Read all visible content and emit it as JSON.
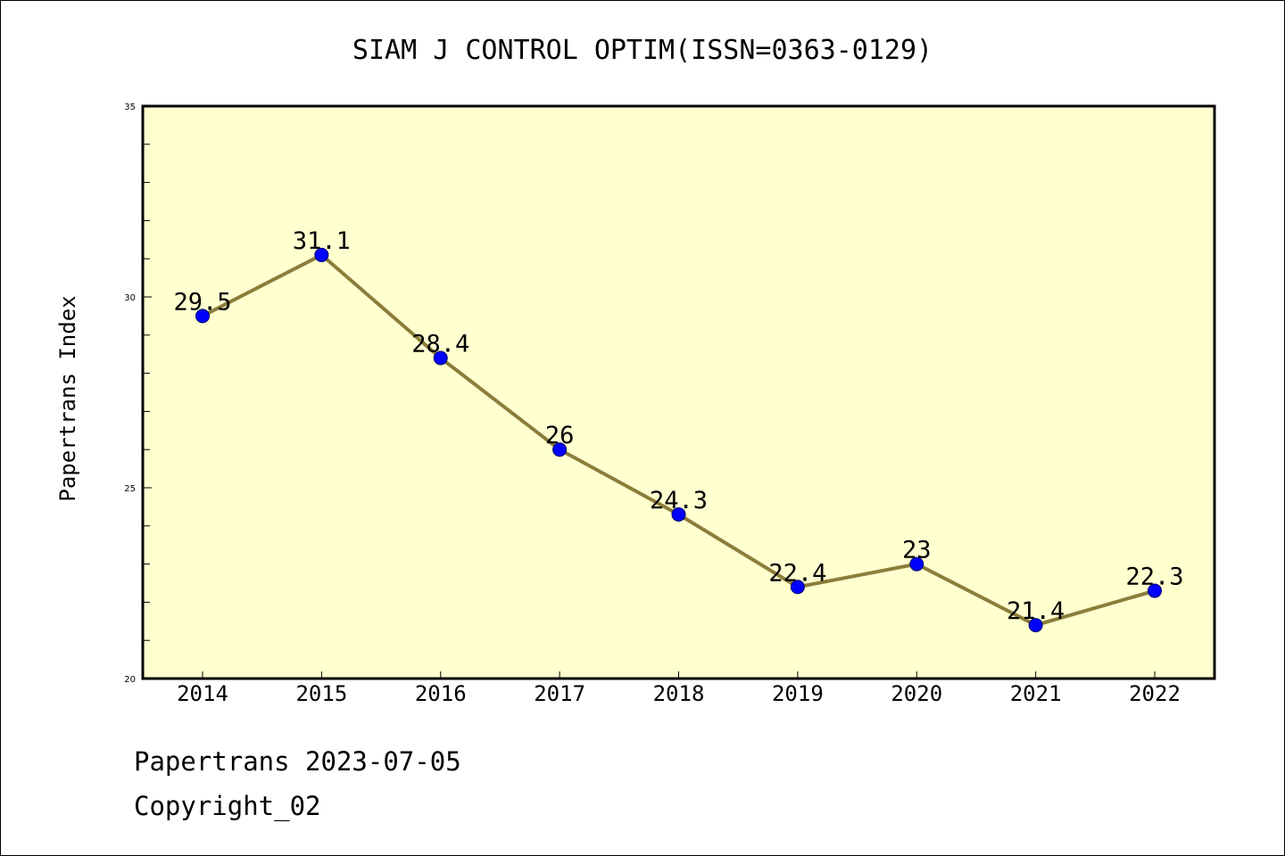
{
  "chart_data": {
    "type": "line",
    "title": "SIAM J CONTROL OPTIM(ISSN=0363-0129)",
    "xlabel": "",
    "ylabel": "Papertrans Index",
    "categories": [
      "2014",
      "2015",
      "2016",
      "2017",
      "2018",
      "2019",
      "2020",
      "2021",
      "2022"
    ],
    "series": [
      {
        "values": [
          29.5,
          31.1,
          28.4,
          26,
          24.3,
          22.4,
          23,
          21.4,
          22.3
        ],
        "labels": [
          "29.5",
          "31.1",
          "28.4",
          "26",
          "24.3",
          "22.4",
          "23",
          "21.4",
          "22.3"
        ]
      }
    ],
    "ylim": [
      20,
      35
    ],
    "yticks": [
      "20",
      "25",
      "30",
      "35"
    ],
    "grid": false,
    "legend": "none",
    "colors": {
      "plot_background": "#ffffd0",
      "line": "#8b7d3a",
      "marker": "#0000ff"
    }
  },
  "footer": {
    "line1": "Papertrans 2023-07-05",
    "line2": "Copyright_02"
  }
}
